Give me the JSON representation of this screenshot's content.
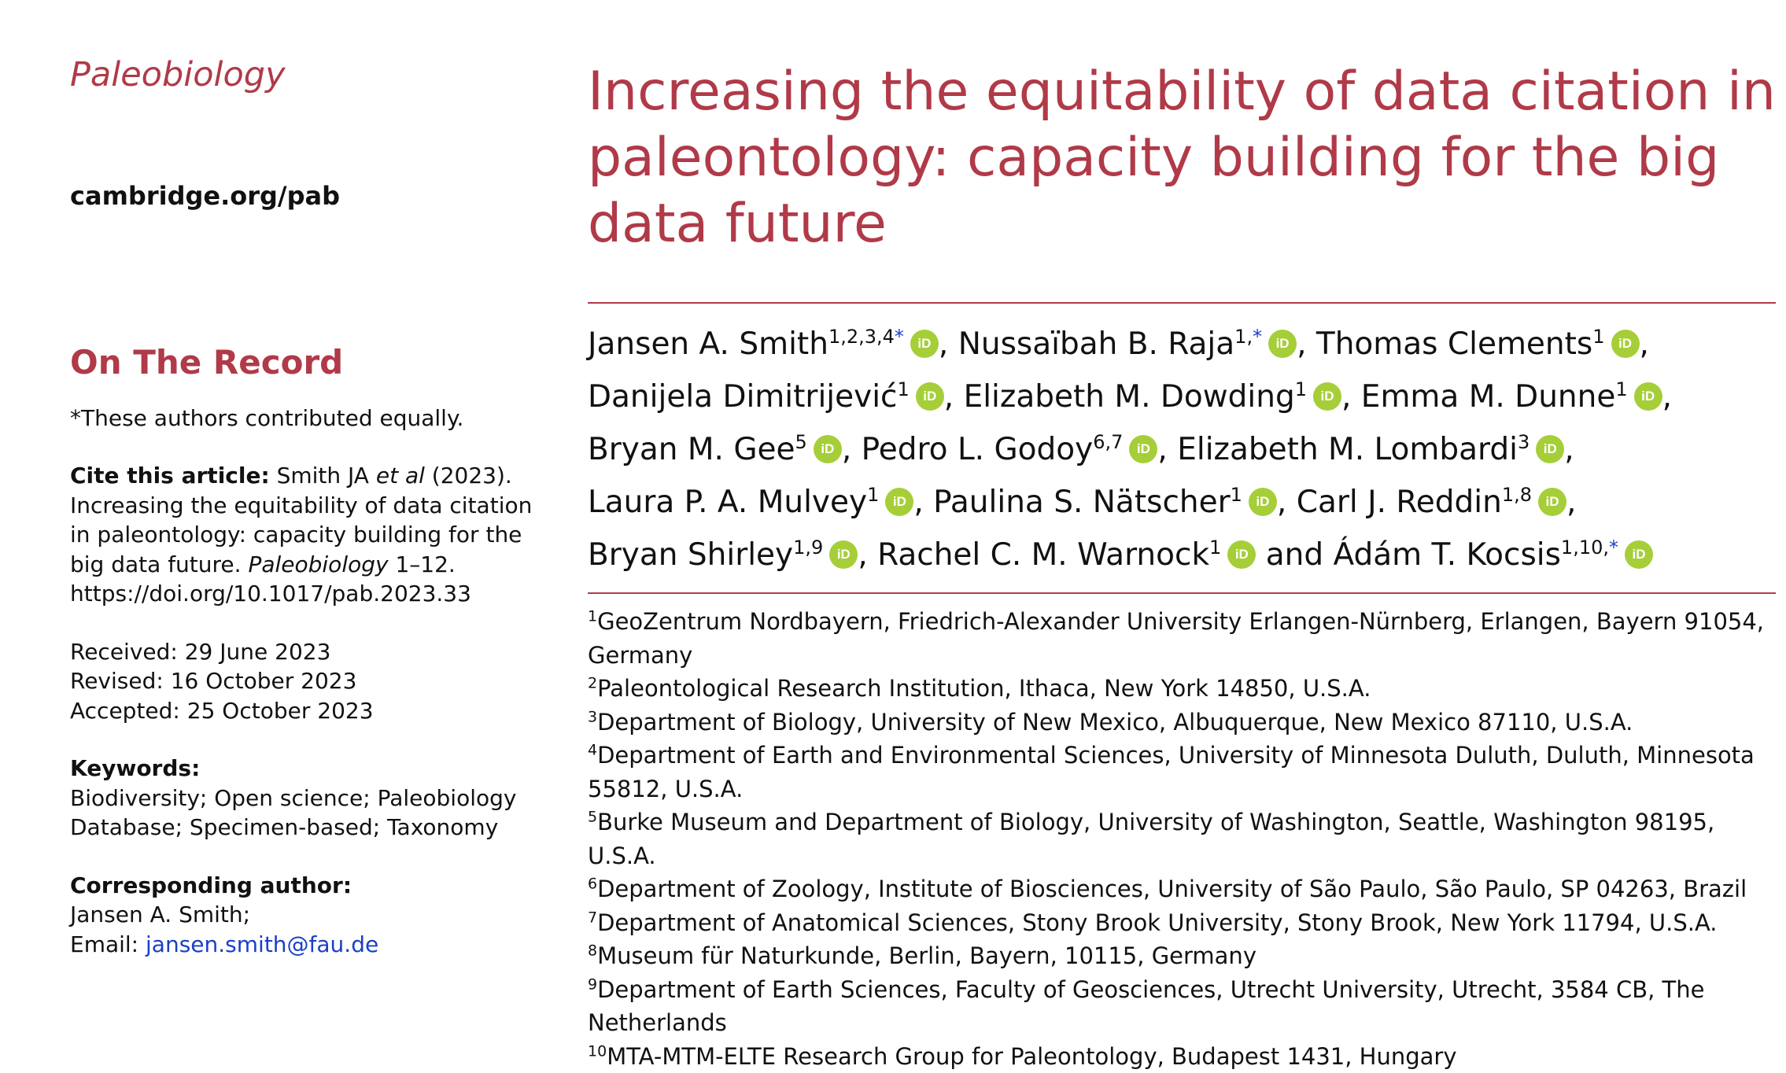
{
  "sidebar": {
    "journal": "Paleobiology",
    "site": "cambridge.org/pab",
    "section": "On The Record",
    "equal_note": "*These authors contributed equally.",
    "cite_label": "Cite this article:",
    "cite_pre": " Smith JA ",
    "cite_etal": "et al",
    "cite_mid": " (2023). Increasing the equitability of data citation in paleontology: capacity building for the big data future. ",
    "cite_journal": "Paleobiology",
    "cite_post": " 1–12. https://doi.org/10.1017/pab.2023.33",
    "received": "Received: 29 June 2023",
    "revised": "Revised: 16 October 2023",
    "accepted": "Accepted: 25 October 2023",
    "keywords_label": "Keywords:",
    "keywords": "Biodiversity; Open science; Paleobiology Database; Specimen-based; Taxonomy",
    "corresponding_label": "Corresponding author:",
    "corresponding_name": "Jansen A. Smith;",
    "email_label": "Email: ",
    "email": "jansen.smith@fau.de"
  },
  "article": {
    "title": "Increasing the equitability of data citation in paleontology: capacity building for the big data future",
    "orcid_glyph": "iD",
    "authors": [
      {
        "name": "Jansen A. Smith",
        "sup": "1,2,3,4",
        "star": "*",
        "sep": ", "
      },
      {
        "name": "Nussaïbah B. Raja",
        "sup": "1,",
        "star": "*",
        "sep": ", "
      },
      {
        "name": "Thomas Clements",
        "sup": "1",
        "star": "",
        "sep": ", "
      },
      {
        "name": "Danijela Dimitrijević",
        "sup": "1",
        "star": "",
        "sep": ", "
      },
      {
        "name": "Elizabeth M. Dowding",
        "sup": "1",
        "star": "",
        "sep": ", "
      },
      {
        "name": "Emma M. Dunne",
        "sup": "1",
        "star": "",
        "sep": ", "
      },
      {
        "name": "Bryan M. Gee",
        "sup": "5",
        "star": "",
        "sep": ", "
      },
      {
        "name": "Pedro L. Godoy",
        "sup": "6,7",
        "star": "",
        "sep": ", "
      },
      {
        "name": "Elizabeth M. Lombardi",
        "sup": "3",
        "star": "",
        "sep": ", "
      },
      {
        "name": "Laura P. A. Mulvey",
        "sup": "1",
        "star": "",
        "sep": ", "
      },
      {
        "name": "Paulina S. Nätscher",
        "sup": "1",
        "star": "",
        "sep": ", "
      },
      {
        "name": "Carl J. Reddin",
        "sup": "1,8",
        "star": "",
        "sep": ", "
      },
      {
        "name": "Bryan Shirley",
        "sup": "1,9",
        "star": "",
        "sep": ", "
      },
      {
        "name": "Rachel C. M. Warnock",
        "sup": "1",
        "star": "",
        "sep": " and "
      },
      {
        "name": "Ádám T. Kocsis",
        "sup": "1,10,",
        "star": "*",
        "sep": ""
      }
    ],
    "affiliations": [
      {
        "num": "1",
        "text": "GeoZentrum Nordbayern, Friedrich-Alexander University Erlangen-Nürnberg, Erlangen, Bayern 91054, Germany"
      },
      {
        "num": "2",
        "text": "Paleontological Research Institution, Ithaca, New York 14850, U.S.A."
      },
      {
        "num": "3",
        "text": "Department of Biology, University of New Mexico, Albuquerque, New Mexico 87110, U.S.A."
      },
      {
        "num": "4",
        "text": "Department of Earth and Environmental Sciences, University of Minnesota Duluth, Duluth, Minnesota 55812, U.S.A."
      },
      {
        "num": "5",
        "text": "Burke Museum and Department of Biology, University of Washington, Seattle, Washington 98195, U.S.A."
      },
      {
        "num": "6",
        "text": "Department of Zoology, Institute of Biosciences, University of São Paulo, São Paulo, SP 04263, Brazil"
      },
      {
        "num": "7",
        "text": "Department of Anatomical Sciences, Stony Brook University, Stony Brook, New York 11794, U.S.A."
      },
      {
        "num": "8",
        "text": "Museum für Naturkunde, Berlin, Bayern, 10115, Germany"
      },
      {
        "num": "9",
        "text": "Department of Earth Sciences, Faculty of Geosciences, Utrecht University, Utrecht, 3584 CB, The Netherlands"
      },
      {
        "num": "10",
        "text": "MTA-MTM-ELTE Research Group for Paleontology, Budapest 1431, Hungary"
      }
    ]
  }
}
